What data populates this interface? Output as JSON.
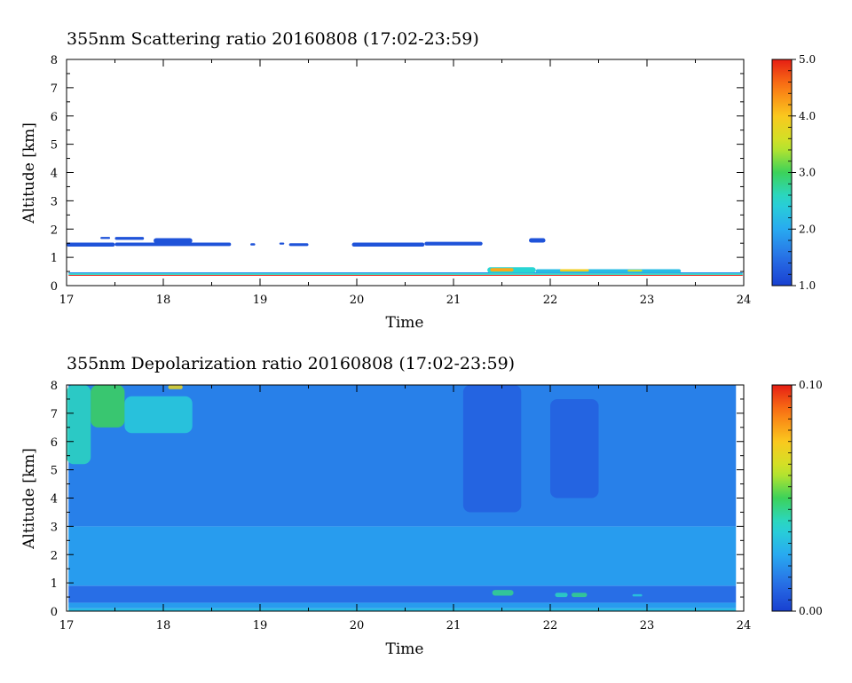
{
  "chart_data": [
    {
      "type": "heatmap",
      "title": "355nm Scattering ratio  20160808 (17:02-23:59)",
      "xlabel": "Time",
      "ylabel": "Altitude [km]",
      "xlim": [
        17,
        24
      ],
      "ylim": [
        0,
        8
      ],
      "x_ticks": [
        "17",
        "18",
        "19",
        "20",
        "21",
        "22",
        "23",
        "24"
      ],
      "y_ticks": [
        "0",
        "1",
        "2",
        "3",
        "4",
        "5",
        "6",
        "7",
        "8"
      ],
      "colorbar": {
        "range": [
          1.0,
          5.0
        ],
        "tick_labels": [
          "1.0",
          "2.0",
          "3.0",
          "4.0",
          "5.0"
        ],
        "tick_values": [
          1.0,
          2.0,
          3.0,
          4.0,
          5.0
        ]
      },
      "features": [
        {
          "t0": 17.02,
          "t1": 23.99,
          "alt0": 0.35,
          "alt1": 0.38,
          "value": 5.0
        },
        {
          "t0": 17.02,
          "t1": 23.99,
          "alt0": 0.38,
          "alt1": 0.43,
          "value": 2.6
        },
        {
          "t0": 17.02,
          "t1": 23.99,
          "alt0": 0.43,
          "alt1": 0.47,
          "value": 1.8
        },
        {
          "t0": 17.0,
          "t1": 17.5,
          "alt0": 1.38,
          "alt1": 1.52,
          "value": 1.2
        },
        {
          "t0": 17.35,
          "t1": 17.45,
          "alt0": 1.65,
          "alt1": 1.72,
          "value": 1.2
        },
        {
          "t0": 17.5,
          "t1": 17.8,
          "alt0": 1.62,
          "alt1": 1.72,
          "value": 1.2
        },
        {
          "t0": 17.9,
          "t1": 18.3,
          "alt0": 1.5,
          "alt1": 1.68,
          "value": 1.2
        },
        {
          "t0": 17.5,
          "t1": 18.7,
          "alt0": 1.4,
          "alt1": 1.52,
          "value": 1.2
        },
        {
          "t0": 18.9,
          "t1": 18.95,
          "alt0": 1.42,
          "alt1": 1.5,
          "value": 1.2
        },
        {
          "t0": 19.2,
          "t1": 19.25,
          "alt0": 1.45,
          "alt1": 1.52,
          "value": 1.2
        },
        {
          "t0": 19.3,
          "t1": 19.5,
          "alt0": 1.4,
          "alt1": 1.5,
          "value": 1.2
        },
        {
          "t0": 19.95,
          "t1": 20.7,
          "alt0": 1.38,
          "alt1": 1.52,
          "value": 1.2
        },
        {
          "t0": 20.7,
          "t1": 21.3,
          "alt0": 1.42,
          "alt1": 1.55,
          "value": 1.2
        },
        {
          "t0": 21.78,
          "t1": 21.95,
          "alt0": 1.52,
          "alt1": 1.68,
          "value": 1.2
        },
        {
          "t0": 21.35,
          "t1": 21.85,
          "alt0": 0.45,
          "alt1": 0.65,
          "value": 2.5
        },
        {
          "t0": 21.38,
          "t1": 21.62,
          "alt0": 0.5,
          "alt1": 0.62,
          "value": 4.2
        },
        {
          "t0": 21.85,
          "t1": 23.35,
          "alt0": 0.45,
          "alt1": 0.58,
          "value": 2.2
        },
        {
          "t0": 22.1,
          "t1": 22.4,
          "alt0": 0.5,
          "alt1": 0.58,
          "value": 3.9
        },
        {
          "t0": 22.8,
          "t1": 22.95,
          "alt0": 0.5,
          "alt1": 0.56,
          "value": 3.6
        }
      ]
    },
    {
      "type": "heatmap",
      "title": "355nm Depolarization ratio  20160808 (17:02-23:59)",
      "xlabel": "Time",
      "ylabel": "Altitude [km]",
      "xlim": [
        17,
        24
      ],
      "ylim": [
        0,
        8
      ],
      "x_ticks": [
        "17",
        "18",
        "19",
        "20",
        "21",
        "22",
        "23",
        "24"
      ],
      "y_ticks": [
        "0",
        "1",
        "2",
        "3",
        "4",
        "5",
        "6",
        "7",
        "8"
      ],
      "colorbar": {
        "range": [
          0.0,
          0.1
        ],
        "tick_labels": [
          "0.00",
          "0.10"
        ],
        "tick_values": [
          0.0,
          0.1
        ]
      },
      "background": [
        {
          "alt0": 0.0,
          "alt1": 0.1,
          "value": 0.03
        },
        {
          "alt0": 0.1,
          "alt1": 0.3,
          "value": 0.022
        },
        {
          "alt0": 0.3,
          "alt1": 0.9,
          "value": 0.012
        },
        {
          "alt0": 0.9,
          "alt1": 3.0,
          "value": 0.022
        },
        {
          "alt0": 3.0,
          "alt1": 8.0,
          "value": 0.016
        }
      ],
      "features": [
        {
          "t0": 17.0,
          "t1": 17.25,
          "alt0": 5.2,
          "alt1": 8.0,
          "value": 0.04
        },
        {
          "t0": 17.25,
          "t1": 17.6,
          "alt0": 6.5,
          "alt1": 8.0,
          "value": 0.05
        },
        {
          "t0": 17.6,
          "t1": 18.3,
          "alt0": 6.3,
          "alt1": 7.6,
          "value": 0.035
        },
        {
          "t0": 18.05,
          "t1": 18.2,
          "alt0": 7.85,
          "alt1": 8.0,
          "value": 0.07
        },
        {
          "t0": 21.1,
          "t1": 21.7,
          "alt0": 3.5,
          "alt1": 8.0,
          "value": 0.008
        },
        {
          "t0": 22.0,
          "t1": 22.5,
          "alt0": 4.0,
          "alt1": 7.5,
          "value": 0.008
        },
        {
          "t0": 21.4,
          "t1": 21.62,
          "alt0": 0.55,
          "alt1": 0.75,
          "value": 0.045
        },
        {
          "t0": 22.05,
          "t1": 22.18,
          "alt0": 0.5,
          "alt1": 0.65,
          "value": 0.04
        },
        {
          "t0": 22.22,
          "t1": 22.38,
          "alt0": 0.5,
          "alt1": 0.65,
          "value": 0.045
        },
        {
          "t0": 22.85,
          "t1": 22.95,
          "alt0": 0.52,
          "alt1": 0.6,
          "value": 0.035
        }
      ]
    }
  ]
}
